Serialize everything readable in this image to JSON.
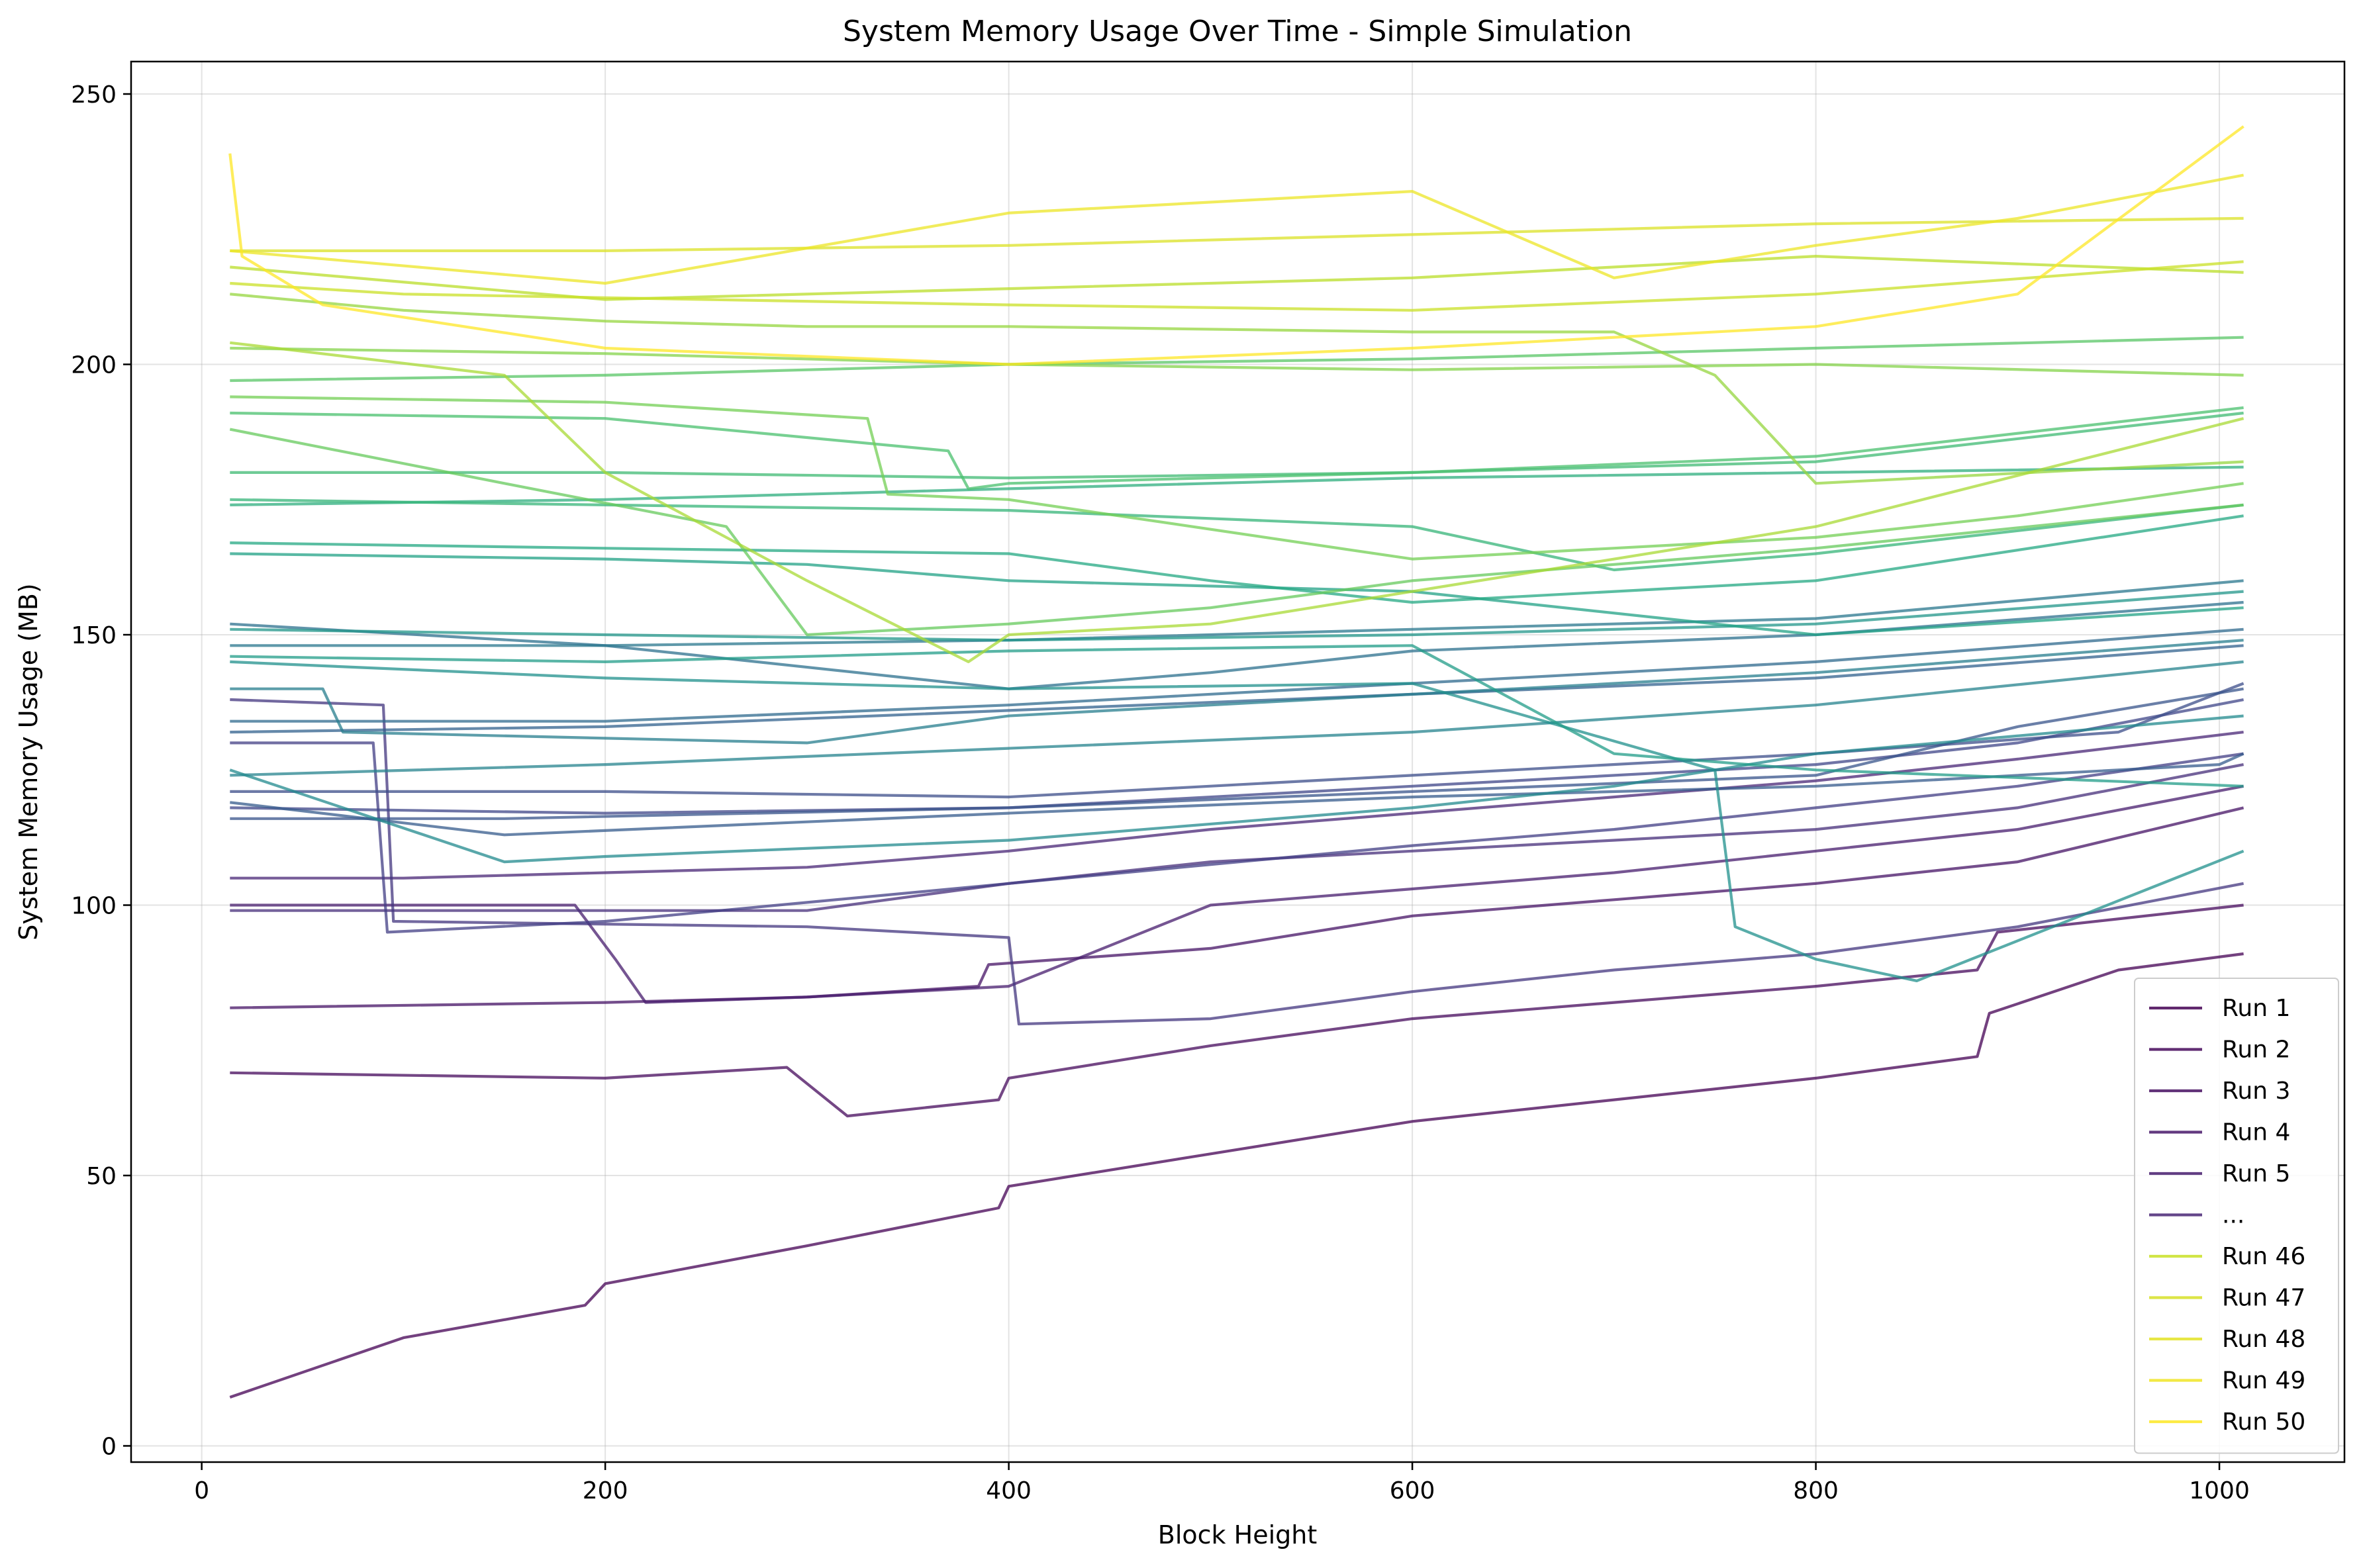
{
  "chart_data": {
    "type": "line",
    "title": "System Memory Usage Over Time - Simple Simulation",
    "xlabel": "Block Height",
    "ylabel": "System Memory Usage (MB)",
    "xlim": [
      -35,
      1062
    ],
    "ylim": [
      -3,
      256
    ],
    "xticks": [
      0,
      200,
      400,
      600,
      800,
      1000
    ],
    "yticks": [
      0,
      50,
      100,
      150,
      200,
      250
    ],
    "grid": true,
    "legend_position": "lower right",
    "legend": [
      "Run 1",
      "Run 2",
      "Run 3",
      "Run 4",
      "Run 5",
      "...",
      "Run 46",
      "Run 47",
      "Run 48",
      "Run 49",
      "Run 50"
    ],
    "colormap": "viridis",
    "series": [
      {
        "name": "Run 1",
        "x": [
          14,
          100,
          190,
          200,
          300,
          395,
          400,
          500,
          600,
          700,
          800,
          880,
          886,
          950,
          1012
        ],
        "values": [
          9,
          20,
          26,
          30,
          37,
          44,
          48,
          54,
          60,
          64,
          68,
          72,
          80,
          88,
          91
        ]
      },
      {
        "name": "Run 2",
        "x": [
          14,
          200,
          290,
          320,
          395,
          400,
          500,
          600,
          700,
          800,
          880,
          890,
          1012
        ],
        "values": [
          69,
          68,
          70,
          61,
          64,
          68,
          74,
          79,
          82,
          85,
          88,
          95,
          100
        ]
      },
      {
        "name": "Run 3",
        "x": [
          14,
          200,
          300,
          385,
          390,
          500,
          600,
          700,
          800,
          900,
          1012
        ],
        "values": [
          81,
          82,
          83,
          85,
          89,
          92,
          98,
          101,
          104,
          108,
          118
        ]
      },
      {
        "name": "Run 4",
        "x": [
          14,
          185,
          205,
          220,
          300,
          400,
          500,
          600,
          700,
          800,
          900,
          1012
        ],
        "values": [
          100,
          100,
          90,
          82,
          83,
          85,
          100,
          103,
          106,
          110,
          114,
          122
        ]
      },
      {
        "name": "Run 5",
        "x": [
          14,
          100,
          200,
          300,
          400,
          500,
          600,
          700,
          800,
          900,
          1012
        ],
        "values": [
          105,
          105,
          106,
          107,
          110,
          114,
          117,
          120,
          123,
          127,
          132
        ]
      },
      {
        "name": "",
        "x": [
          14,
          300,
          400,
          500,
          600,
          700,
          800,
          900,
          1012
        ],
        "values": [
          99,
          99,
          104,
          108,
          110,
          112,
          114,
          118,
          126
        ]
      },
      {
        "name": "",
        "x": [
          14,
          90,
          95,
          300,
          400,
          405,
          500,
          600,
          700,
          800,
          900,
          1012
        ],
        "values": [
          138,
          137,
          97,
          96,
          94,
          78,
          79,
          84,
          88,
          91,
          96,
          104
        ]
      },
      {
        "name": "",
        "x": [
          14,
          85,
          92,
          200,
          400,
          600,
          700,
          800,
          900,
          1012
        ],
        "values": [
          130,
          130,
          95,
          97,
          104,
          111,
          114,
          118,
          122,
          128
        ]
      },
      {
        "name": "",
        "x": [
          14,
          200,
          400,
          600,
          800,
          900,
          1012
        ],
        "values": [
          118,
          117,
          118,
          122,
          126,
          130,
          138
        ]
      },
      {
        "name": "",
        "x": [
          14,
          200,
          400,
          600,
          800,
          950,
          1012
        ],
        "values": [
          121,
          121,
          120,
          124,
          128,
          132,
          141
        ]
      },
      {
        "name": "",
        "x": [
          14,
          150,
          400,
          600,
          800,
          900,
          1012
        ],
        "values": [
          116,
          116,
          118,
          121,
          124,
          133,
          140
        ]
      },
      {
        "name": "",
        "x": [
          14,
          150,
          400,
          600,
          800,
          1000,
          1012
        ],
        "values": [
          119,
          113,
          117,
          120,
          122,
          126,
          128
        ]
      },
      {
        "name": "",
        "x": [
          14,
          200,
          400,
          600,
          800,
          1012
        ],
        "values": [
          132,
          133,
          136,
          139,
          142,
          148
        ]
      },
      {
        "name": "",
        "x": [
          14,
          200,
          400,
          600,
          800,
          1012
        ],
        "values": [
          134,
          134,
          137,
          141,
          145,
          151
        ]
      },
      {
        "name": "",
        "x": [
          14,
          200,
          400,
          500,
          600,
          800,
          1012
        ],
        "values": [
          152,
          148,
          140,
          143,
          147,
          150,
          156
        ]
      },
      {
        "name": "",
        "x": [
          14,
          200,
          400,
          600,
          800,
          1012
        ],
        "values": [
          148,
          148,
          149,
          151,
          153,
          160
        ]
      },
      {
        "name": "",
        "x": [
          14,
          60,
          70,
          300,
          400,
          600,
          800,
          1012
        ],
        "values": [
          140,
          140,
          132,
          130,
          135,
          139,
          143,
          149
        ]
      },
      {
        "name": "",
        "x": [
          14,
          200,
          400,
          600,
          800,
          1012
        ],
        "values": [
          124,
          126,
          129,
          132,
          137,
          145
        ]
      },
      {
        "name": "",
        "x": [
          14,
          150,
          200,
          400,
          600,
          700,
          800,
          1012
        ],
        "values": [
          125,
          108,
          109,
          112,
          118,
          122,
          128,
          135
        ]
      },
      {
        "name": "",
        "x": [
          14,
          200,
          400,
          600,
          750,
          760,
          800,
          850,
          1012
        ],
        "values": [
          145,
          142,
          140,
          141,
          125,
          96,
          90,
          86,
          110
        ]
      },
      {
        "name": "",
        "x": [
          14,
          200,
          400,
          600,
          800,
          1012
        ],
        "values": [
          151,
          150,
          149,
          150,
          152,
          158
        ]
      },
      {
        "name": "",
        "x": [
          14,
          200,
          400,
          600,
          700,
          800,
          1012
        ],
        "values": [
          146,
          145,
          147,
          148,
          128,
          125,
          122
        ]
      },
      {
        "name": "",
        "x": [
          14,
          200,
          300,
          400,
          600,
          800,
          1012
        ],
        "values": [
          165,
          164,
          163,
          160,
          158,
          150,
          155
        ]
      },
      {
        "name": "",
        "x": [
          14,
          200,
          400,
          500,
          600,
          800,
          1012
        ],
        "values": [
          167,
          166,
          165,
          160,
          156,
          160,
          172
        ]
      },
      {
        "name": "",
        "x": [
          14,
          200,
          400,
          600,
          800,
          1012
        ],
        "values": [
          174,
          175,
          177,
          179,
          180,
          181
        ]
      },
      {
        "name": "",
        "x": [
          14,
          200,
          400,
          600,
          700,
          800,
          1012
        ],
        "values": [
          175,
          174,
          173,
          170,
          162,
          165,
          174
        ]
      },
      {
        "name": "",
        "x": [
          14,
          200,
          400,
          600,
          800,
          1012
        ],
        "values": [
          180,
          180,
          179,
          180,
          182,
          191
        ]
      },
      {
        "name": "",
        "x": [
          14,
          200,
          370,
          380,
          400,
          600,
          800,
          1012
        ],
        "values": [
          191,
          190,
          184,
          177,
          178,
          180,
          183,
          192
        ]
      },
      {
        "name": "",
        "x": [
          14,
          200,
          400,
          600,
          800,
          1012
        ],
        "values": [
          197,
          198,
          200,
          201,
          203,
          205
        ]
      },
      {
        "name": "",
        "x": [
          14,
          150,
          260,
          300,
          400,
          500,
          600,
          700,
          800,
          1012
        ],
        "values": [
          188,
          178,
          170,
          150,
          152,
          155,
          160,
          163,
          166,
          174
        ]
      },
      {
        "name": "",
        "x": [
          14,
          200,
          330,
          340,
          400,
          600,
          800,
          900,
          1012
        ],
        "values": [
          194,
          193,
          190,
          176,
          175,
          164,
          168,
          172,
          178
        ]
      },
      {
        "name": "",
        "x": [
          14,
          200,
          400,
          600,
          800,
          1012
        ],
        "values": [
          203,
          202,
          200,
          199,
          200,
          198
        ]
      },
      {
        "name": "",
        "x": [
          14,
          100,
          200,
          300,
          400,
          600,
          700,
          750,
          800,
          1012
        ],
        "values": [
          213,
          210,
          208,
          207,
          207,
          206,
          206,
          198,
          178,
          182
        ]
      },
      {
        "name": "",
        "x": [
          14,
          150,
          200,
          300,
          380,
          400,
          500,
          600,
          800,
          1012
        ],
        "values": [
          204,
          198,
          180,
          160,
          145,
          150,
          152,
          158,
          170,
          190
        ]
      },
      {
        "name": "Run 46",
        "x": [
          14,
          200,
          400,
          600,
          800,
          1012
        ],
        "values": [
          218,
          212,
          214,
          216,
          220,
          217
        ]
      },
      {
        "name": "Run 47",
        "x": [
          14,
          100,
          250,
          400,
          600,
          800,
          1012
        ],
        "values": [
          215,
          213,
          212,
          211,
          210,
          213,
          219
        ]
      },
      {
        "name": "Run 48",
        "x": [
          14,
          200,
          400,
          600,
          800,
          1012
        ],
        "values": [
          221,
          221,
          222,
          224,
          226,
          227
        ]
      },
      {
        "name": "Run 49",
        "x": [
          14,
          200,
          400,
          600,
          700,
          800,
          900,
          1012
        ],
        "values": [
          221,
          215,
          228,
          232,
          216,
          222,
          227,
          235
        ]
      },
      {
        "name": "Run 50",
        "x": [
          14,
          20,
          60,
          200,
          400,
          600,
          800,
          900,
          1012
        ],
        "values": [
          239,
          220,
          211,
          203,
          200,
          203,
          207,
          213,
          244
        ]
      }
    ]
  }
}
